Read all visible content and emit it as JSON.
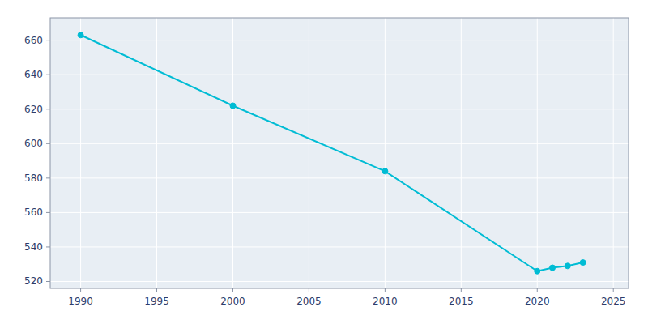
{
  "chart_data": {
    "type": "line",
    "x": [
      1990,
      2000,
      2010,
      2020,
      2021,
      2022,
      2023
    ],
    "values": [
      663,
      622,
      584,
      526,
      528,
      529,
      531
    ],
    "color": "#00BCD4",
    "marker": "circle",
    "xlim": [
      1988,
      2026
    ],
    "ylim": [
      516,
      673
    ],
    "xticks": [
      1990,
      1995,
      2000,
      2005,
      2010,
      2015,
      2020,
      2025
    ],
    "yticks": [
      520,
      540,
      560,
      580,
      600,
      620,
      640,
      660
    ],
    "grid": true
  }
}
